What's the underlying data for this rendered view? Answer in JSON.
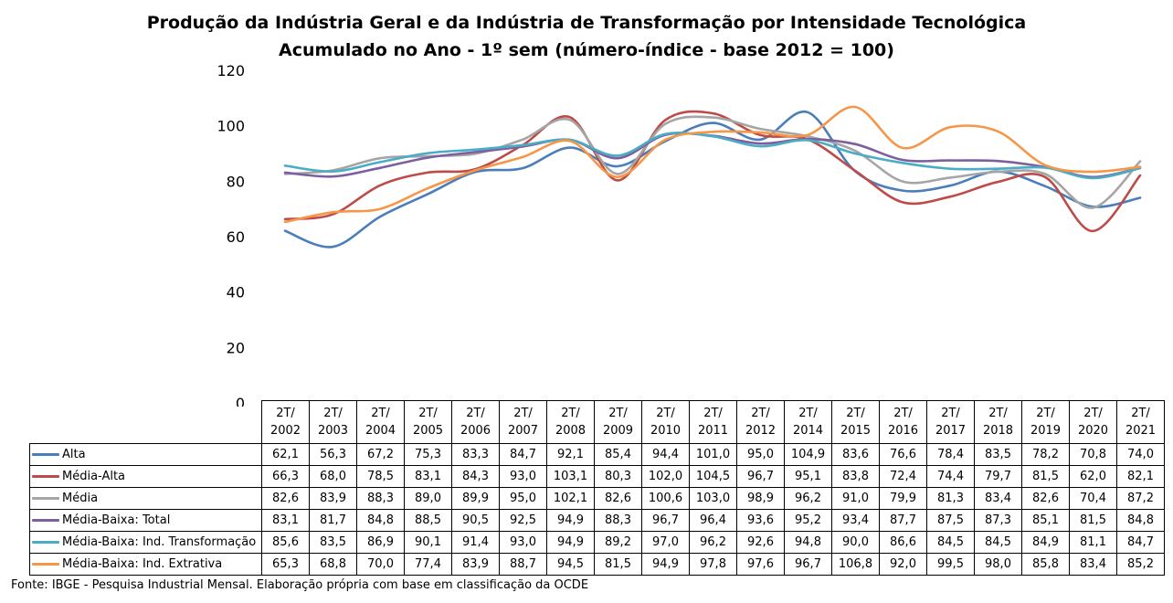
{
  "chart_data": {
    "type": "line",
    "title_lines": [
      "Produção da Indústria Geral e da Indústria de Transformação por Intensidade Tecnológica",
      "Acumulado no Ano - 1º sem (número-índice - base 2012 = 100)"
    ],
    "categories": [
      [
        "2T/",
        "2002"
      ],
      [
        "2T/",
        "2003"
      ],
      [
        "2T/",
        "2004"
      ],
      [
        "2T/",
        "2005"
      ],
      [
        "2T/",
        "2006"
      ],
      [
        "2T/",
        "2007"
      ],
      [
        "2T/",
        "2008"
      ],
      [
        "2T/",
        "2009"
      ],
      [
        "2T/",
        "2010"
      ],
      [
        "2T/",
        "2011"
      ],
      [
        "2T/",
        "2012"
      ],
      [
        "2T/",
        "2014"
      ],
      [
        "2T/",
        "2015"
      ],
      [
        "2T/",
        "2016"
      ],
      [
        "2T/",
        "2017"
      ],
      [
        "2T/",
        "2018"
      ],
      [
        "2T/",
        "2019"
      ],
      [
        "2T/",
        "2020"
      ],
      [
        "2T/",
        "2021"
      ]
    ],
    "ylim": [
      0,
      120
    ],
    "yticks": [
      0,
      20,
      40,
      60,
      80,
      100,
      120
    ],
    "grid": false,
    "legend": "data-table",
    "series": [
      {
        "name": "Alta",
        "color": "#4a7ebb",
        "values": [
          62.1,
          56.3,
          67.2,
          75.3,
          83.3,
          84.7,
          92.1,
          85.4,
          94.4,
          101.0,
          95.0,
          104.9,
          83.6,
          76.6,
          78.4,
          83.5,
          78.2,
          70.8,
          74.0
        ],
        "labels": [
          "62,1",
          "56,3",
          "67,2",
          "75,3",
          "83,3",
          "84,7",
          "92,1",
          "85,4",
          "94,4",
          "101,0",
          "95,0",
          "104,9",
          "83,6",
          "76,6",
          "78,4",
          "83,5",
          "78,2",
          "70,8",
          "74,0"
        ]
      },
      {
        "name": "Média-Alta",
        "color": "#be4b48",
        "values": [
          66.3,
          68.0,
          78.5,
          83.1,
          84.3,
          93.0,
          103.1,
          80.3,
          102.0,
          104.5,
          96.7,
          95.1,
          83.8,
          72.4,
          74.4,
          79.7,
          81.5,
          62.0,
          82.1
        ],
        "labels": [
          "66,3",
          "68,0",
          "78,5",
          "83,1",
          "84,3",
          "93,0",
          "103,1",
          "80,3",
          "102,0",
          "104,5",
          "96,7",
          "95,1",
          "83,8",
          "72,4",
          "74,4",
          "79,7",
          "81,5",
          "62,0",
          "82,1"
        ]
      },
      {
        "name": "Média",
        "color": "#a5a5a5",
        "values": [
          82.6,
          83.9,
          88.3,
          89.0,
          89.9,
          95.0,
          102.1,
          82.6,
          100.6,
          103.0,
          98.9,
          96.2,
          91.0,
          79.9,
          81.3,
          83.4,
          82.6,
          70.4,
          87.2
        ],
        "labels": [
          "82,6",
          "83,9",
          "88,3",
          "89,0",
          "89,9",
          "95,0",
          "102,1",
          "82,6",
          "100,6",
          "103,0",
          "98,9",
          "96,2",
          "91,0",
          "79,9",
          "81,3",
          "83,4",
          "82,6",
          "70,4",
          "87,2"
        ]
      },
      {
        "name": "Média-Baixa: Total",
        "color": "#7d5fa0",
        "values": [
          83.1,
          81.7,
          84.8,
          88.5,
          90.5,
          92.5,
          94.9,
          88.3,
          96.7,
          96.4,
          93.6,
          95.2,
          93.4,
          87.7,
          87.5,
          87.3,
          85.1,
          81.5,
          84.8
        ],
        "labels": [
          "83,1",
          "81,7",
          "84,8",
          "88,5",
          "90,5",
          "92,5",
          "94,9",
          "88,3",
          "96,7",
          "96,4",
          "93,6",
          "95,2",
          "93,4",
          "87,7",
          "87,5",
          "87,3",
          "85,1",
          "81,5",
          "84,8"
        ]
      },
      {
        "name": "Média-Baixa: Ind. Transformação",
        "color": "#4bacc6",
        "values": [
          85.6,
          83.5,
          86.9,
          90.1,
          91.4,
          93.0,
          94.9,
          89.2,
          97.0,
          96.2,
          92.6,
          94.8,
          90.0,
          86.6,
          84.5,
          84.5,
          84.9,
          81.1,
          84.7
        ],
        "labels": [
          "85,6",
          "83,5",
          "86,9",
          "90,1",
          "91,4",
          "93,0",
          "94,9",
          "89,2",
          "97,0",
          "96,2",
          "92,6",
          "94,8",
          "90,0",
          "86,6",
          "84,5",
          "84,5",
          "84,9",
          "81,1",
          "84,7"
        ]
      },
      {
        "name": "Média-Baixa: Ind. Extrativa",
        "color": "#f79646",
        "values": [
          65.3,
          68.8,
          70.0,
          77.4,
          83.9,
          88.7,
          94.5,
          81.5,
          94.9,
          97.8,
          97.6,
          96.7,
          106.8,
          92.0,
          99.5,
          98.0,
          85.8,
          83.4,
          85.2
        ],
        "labels": [
          "65,3",
          "68,8",
          "70,0",
          "77,4",
          "83,9",
          "88,7",
          "94,5",
          "81,5",
          "94,9",
          "97,8",
          "97,6",
          "96,7",
          "106,8",
          "92,0",
          "99,5",
          "98,0",
          "85,8",
          "83,4",
          "85,2"
        ]
      }
    ]
  },
  "source_note": "Fonte: IBGE - Pesquisa Industrial Mensal. Elaboração própria com base em classificação da OCDE"
}
